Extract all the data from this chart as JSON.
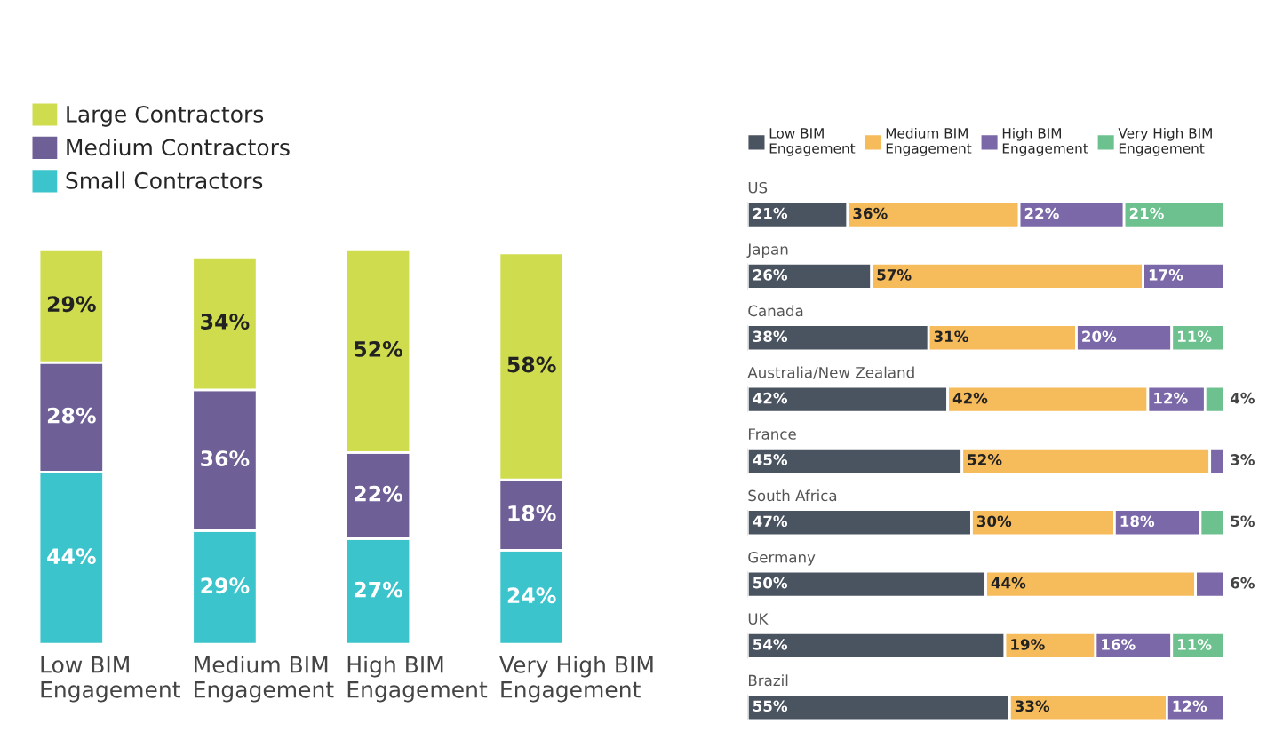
{
  "chart_data": [
    {
      "type": "bar",
      "stacked": true,
      "legend": "top left",
      "categories": [
        "Low BIM Engagement",
        "Medium BIM Engagement",
        "High BIM Engagement",
        "Very High BIM Engagement"
      ],
      "series": [
        {
          "name": "Small Contractors",
          "color": "#3cc4cc",
          "values": [
            44,
            29,
            27,
            24
          ],
          "value_labels": [
            "44%",
            "29%",
            "27%",
            "24%"
          ]
        },
        {
          "name": "Medium Contractors",
          "color": "#6e5f96",
          "values": [
            28,
            36,
            22,
            18
          ],
          "value_labels": [
            "28%",
            "36%",
            "22%",
            "18%"
          ]
        },
        {
          "name": "Large Contractors",
          "color": "#cfdc4e",
          "values": [
            29,
            34,
            52,
            58
          ],
          "value_labels": [
            "29%",
            "34%",
            "52%",
            "58%"
          ]
        }
      ]
    },
    {
      "type": "bar",
      "stacked": true,
      "orientation": "horizontal",
      "legend": "top",
      "categories": [
        "US",
        "Japan",
        "Canada",
        "Australia/New Zealand",
        "France",
        "South Africa",
        "Germany",
        "UK",
        "Brazil"
      ],
      "series": [
        {
          "name": "Low BIM Engagement",
          "color": "#4a5360",
          "values": [
            21,
            26,
            38,
            42,
            45,
            47,
            50,
            54,
            55
          ],
          "value_labels": [
            "21%",
            "26%",
            "38%",
            "42%",
            "45%",
            "47%",
            "50%",
            "54%",
            "55%"
          ]
        },
        {
          "name": "Medium BIM Engagement",
          "color": "#f6bb5b",
          "values": [
            36,
            57,
            31,
            42,
            52,
            30,
            44,
            19,
            33
          ],
          "value_labels": [
            "36%",
            "57%",
            "31%",
            "42%",
            "52%",
            "30%",
            "44%",
            "19%",
            "33%"
          ]
        },
        {
          "name": "High BIM Engagement",
          "color": "#7a68a8",
          "values": [
            22,
            17,
            20,
            12,
            3,
            18,
            6,
            16,
            12
          ],
          "value_labels": [
            "22%",
            "17%",
            "20%",
            "12%",
            "3%",
            "18%",
            "6%",
            "16%",
            "12%"
          ]
        },
        {
          "name": "Very High BIM Engagement",
          "color": "#6cc18e",
          "values": [
            21,
            null,
            11,
            4,
            null,
            5,
            null,
            11,
            null
          ],
          "value_labels": [
            "21%",
            null,
            "11%",
            "4%",
            null,
            "5%",
            null,
            "11%",
            null
          ]
        }
      ]
    }
  ]
}
